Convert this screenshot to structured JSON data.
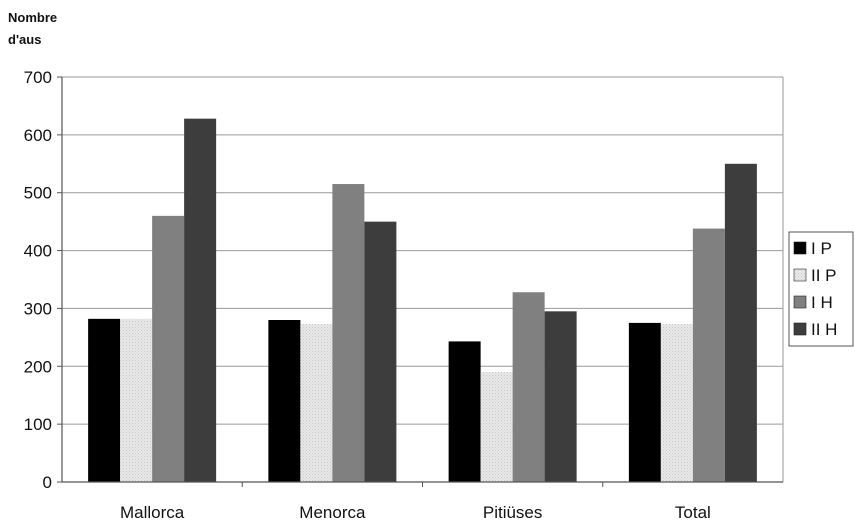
{
  "chart_data": {
    "type": "bar",
    "ylabel_lines": [
      "Nombre",
      "d'aus"
    ],
    "categories": [
      "Mallorca",
      "Menorca",
      "Pitiüses",
      "Total"
    ],
    "series": [
      {
        "name": "I P",
        "values": [
          282,
          280,
          243,
          275
        ],
        "color": "#000000"
      },
      {
        "name": "II P",
        "values": [
          282,
          273,
          190,
          273
        ],
        "color": "#e6e6e6",
        "pattern": "dotted-light"
      },
      {
        "name": "I H",
        "values": [
          460,
          515,
          328,
          438
        ],
        "color": "#808080"
      },
      {
        "name": "II H",
        "values": [
          628,
          450,
          295,
          550
        ],
        "color": "#3d3d3d"
      }
    ],
    "ylim": [
      0,
      700
    ],
    "yticks": [
      0,
      100,
      200,
      300,
      400,
      500,
      600,
      700
    ],
    "grid": true,
    "legend_position": "right"
  }
}
